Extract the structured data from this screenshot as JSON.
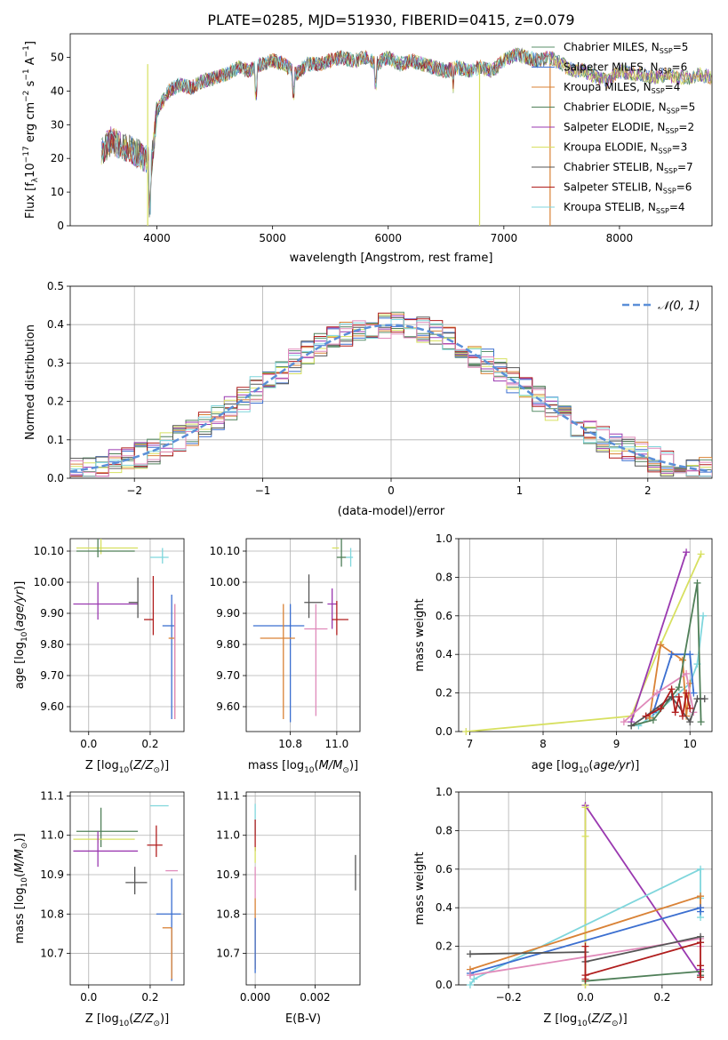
{
  "figure_title": "PLATE=0285, MJD=51930, FIBERID=0415, z=0.079",
  "colors": {
    "c_miles": "#5a8f6a",
    "s_miles": "#3b6fd0",
    "k_miles": "#d98236",
    "c_elodie": "#4f7f58",
    "s_elodie": "#9a39b0",
    "k_elodie": "#d7e060",
    "c_stelib": "#555555",
    "s_stelib": "#b01d1d",
    "k_stelib": "#7fd6dc",
    "pink": "#e08aba",
    "normal": "#5b8fd8"
  },
  "chart_data": [
    {
      "id": "spectrum",
      "type": "line",
      "xlabel": "wavelength [Angstrom, rest frame]",
      "ylabel": "Flux [f",
      "xlim": [
        3250,
        8800
      ],
      "ylim": [
        0,
        57
      ],
      "xticks": [
        4000,
        5000,
        6000,
        7000,
        8000
      ],
      "yticks": [
        0,
        10,
        20,
        30,
        40,
        50
      ],
      "legend_position": "top-right",
      "legend": [
        {
          "label": "Chabrier MILES, N",
          "n": "5",
          "color_key": "c_miles"
        },
        {
          "label": "Salpeter MILES, N",
          "n": "6",
          "color_key": "s_miles"
        },
        {
          "label": "Kroupa MILES, N",
          "n": "4",
          "color_key": "k_miles"
        },
        {
          "label": "Chabrier ELODIE, N",
          "n": "5",
          "color_key": "c_elodie"
        },
        {
          "label": "Salpeter ELODIE, N",
          "n": "2",
          "color_key": "s_elodie"
        },
        {
          "label": "Kroupa ELODIE, N",
          "n": "3",
          "color_key": "k_elodie"
        },
        {
          "label": "Chabrier STELIB, N",
          "n": "7",
          "color_key": "c_stelib"
        },
        {
          "label": "Salpeter STELIB, N",
          "n": "6",
          "color_key": "s_stelib"
        },
        {
          "label": "Kroupa STELIB, N",
          "n": "4",
          "color_key": "k_stelib"
        }
      ],
      "envelope": {
        "x": [
          3520,
          3600,
          3700,
          3800,
          3900,
          3950,
          4000,
          4100,
          4200,
          4300,
          4400,
          4500,
          4600,
          4700,
          4800,
          4900,
          5000,
          5100,
          5200,
          5300,
          5400,
          5500,
          5600,
          5700,
          5800,
          5900,
          6000,
          6100,
          6200,
          6300,
          6400,
          6500,
          6600,
          6700,
          6800,
          6900,
          7000,
          7100,
          7200,
          7300,
          7400,
          7500,
          7600,
          7700,
          7800,
          7900,
          8000,
          8100,
          8200,
          8300,
          8400,
          8500,
          8600,
          8700,
          8800
        ],
        "y": [
          22,
          25,
          24,
          22,
          20,
          18,
          34,
          40,
          42,
          41,
          43,
          44,
          45,
          47,
          46,
          48,
          49,
          48,
          45,
          48,
          48,
          49,
          50,
          49,
          50,
          48,
          50,
          48,
          49,
          48,
          47,
          46,
          47,
          46,
          47,
          46,
          49,
          51,
          50,
          49,
          50,
          48,
          46,
          46,
          44,
          43,
          46,
          45,
          45,
          44,
          45,
          44,
          44,
          45,
          44
        ]
      },
      "spike_lines": [
        {
          "x": 3920,
          "color_key": "k_elodie"
        },
        {
          "x": 6790,
          "color_key": "k_elodie"
        },
        {
          "x": 7400,
          "color_key": "k_miles"
        }
      ]
    },
    {
      "id": "residuals",
      "type": "histogram",
      "xlabel": "(data-model)/error",
      "ylabel": "Normed distribution",
      "xlim": [
        -2.5,
        2.5
      ],
      "ylim": [
        0,
        0.5
      ],
      "xticks": [
        -2,
        -1,
        0,
        1,
        2
      ],
      "yticks": [
        0.0,
        0.1,
        0.2,
        0.3,
        0.4,
        0.5
      ],
      "legend_position": "top-right",
      "legend_label": "𝒩(0, 1)"
    },
    {
      "id": "age_vs_z",
      "type": "errorbar",
      "xlabel": "Z [log",
      "ylabel": "age  [log",
      "xlim": [
        -0.06,
        0.31
      ],
      "ylim": [
        9.52,
        10.14
      ],
      "xticks": [
        0.0,
        0.2
      ],
      "yticks": [
        9.6,
        9.7,
        9.8,
        9.9,
        10.0,
        10.1
      ],
      "points": [
        {
          "x": 0.04,
          "y": 10.11,
          "xe": [
            0.08,
            0.12
          ],
          "ye": [
            0.02,
            0.03
          ],
          "color_key": "k_elodie"
        },
        {
          "x": 0.03,
          "y": 10.1,
          "xe": [
            0.07,
            0.12
          ],
          "ye": [
            0.02,
            0.04
          ],
          "color_key": "c_elodie"
        },
        {
          "x": 0.24,
          "y": 10.08,
          "xe": [
            0.04,
            0.02
          ],
          "ye": [
            0.02,
            0.03
          ],
          "color_key": "k_stelib"
        },
        {
          "x": 0.03,
          "y": 9.93,
          "xe": [
            0.08,
            0.13
          ],
          "ye": [
            0.05,
            0.07
          ],
          "color_key": "s_elodie"
        },
        {
          "x": 0.16,
          "y": 9.935,
          "xe": [
            0.03,
            0.0
          ],
          "ye": [
            0.05,
            0.08
          ],
          "color_key": "c_stelib"
        },
        {
          "x": 0.21,
          "y": 9.88,
          "xe": [
            0.03,
            0.0
          ],
          "ye": [
            0.05,
            0.14
          ],
          "color_key": "s_stelib"
        },
        {
          "x": 0.27,
          "y": 9.86,
          "xe": [
            0.03,
            0.01
          ],
          "ye": [
            0.3,
            0.1
          ],
          "color_key": "s_miles"
        },
        {
          "x": 0.28,
          "y": 9.82,
          "xe": [
            0.02,
            0.0
          ],
          "ye": [
            0.26,
            0.11
          ],
          "color_key": "k_miles"
        },
        {
          "x": 0.28,
          "y": 9.85,
          "xe": [
            0.0,
            0.0
          ],
          "ye": [
            0.29,
            0.08
          ],
          "color_key": "pink"
        }
      ]
    },
    {
      "id": "age_vs_mass",
      "type": "errorbar",
      "xlabel": "mass [log",
      "ylabel": "",
      "xlim": [
        10.61,
        11.1
      ],
      "ylim": [
        9.52,
        10.14
      ],
      "xticks": [
        10.8,
        11.0
      ],
      "yticks": [
        9.6,
        9.7,
        9.8,
        9.9,
        10.0,
        10.1
      ],
      "points": [
        {
          "x": 11.0,
          "y": 10.11,
          "xe": [
            0.02,
            0.01
          ],
          "ye": [
            0.0,
            0.0
          ],
          "color_key": "k_elodie"
        },
        {
          "x": 11.02,
          "y": 10.08,
          "xe": [
            0.02,
            0.02
          ],
          "ye": [
            0.03,
            0.06
          ],
          "color_key": "c_elodie"
        },
        {
          "x": 11.06,
          "y": 10.08,
          "xe": [
            0.02,
            0.01
          ],
          "ye": [
            0.03,
            0.03
          ],
          "color_key": "k_stelib"
        },
        {
          "x": 10.88,
          "y": 9.935,
          "xe": [
            0.02,
            0.06
          ],
          "ye": [
            0.05,
            0.09
          ],
          "color_key": "c_stelib"
        },
        {
          "x": 10.98,
          "y": 9.93,
          "xe": [
            0.02,
            0.02
          ],
          "ye": [
            0.08,
            0.05
          ],
          "color_key": "s_elodie"
        },
        {
          "x": 11.0,
          "y": 9.88,
          "xe": [
            0.02,
            0.05
          ],
          "ye": [
            0.05,
            0.06
          ],
          "color_key": "s_stelib"
        },
        {
          "x": 10.8,
          "y": 9.86,
          "xe": [
            0.16,
            0.06
          ],
          "ye": [
            0.31,
            0.07
          ],
          "color_key": "s_miles"
        },
        {
          "x": 10.77,
          "y": 9.82,
          "xe": [
            0.1,
            0.05
          ],
          "ye": [
            0.26,
            0.11
          ],
          "color_key": "k_miles"
        },
        {
          "x": 10.91,
          "y": 9.85,
          "xe": [
            0.05,
            0.05
          ],
          "ye": [
            0.28,
            0.08
          ],
          "color_key": "pink"
        }
      ]
    },
    {
      "id": "weight_vs_age",
      "type": "line",
      "xlabel": "age  [log",
      "ylabel": "mass weight",
      "xlim": [
        6.85,
        10.3
      ],
      "ylim": [
        0,
        1
      ],
      "xticks": [
        7,
        8,
        9,
        10
      ],
      "yticks": [
        0.0,
        0.2,
        0.4,
        0.6,
        0.8,
        1.0
      ],
      "series": [
        {
          "color_key": "k_elodie",
          "x": [
            6.95,
            9.2,
            9.6,
            10.15
          ],
          "y": [
            0.0,
            0.08,
            0.45,
            0.92
          ]
        },
        {
          "color_key": "s_elodie",
          "x": [
            9.2,
            9.95
          ],
          "y": [
            0.05,
            0.93
          ]
        },
        {
          "color_key": "k_stelib",
          "x": [
            9.3,
            9.55,
            10.0,
            10.1,
            10.18
          ],
          "y": [
            0.03,
            0.1,
            0.25,
            0.35,
            0.6
          ]
        },
        {
          "color_key": "k_miles",
          "x": [
            9.45,
            9.6,
            9.9,
            9.95,
            10.0
          ],
          "y": [
            0.07,
            0.45,
            0.37,
            0.08,
            0.25
          ]
        },
        {
          "color_key": "s_miles",
          "x": [
            9.5,
            9.75,
            10.0,
            10.05
          ],
          "y": [
            0.1,
            0.4,
            0.4,
            0.2
          ]
        },
        {
          "color_key": "pink",
          "x": [
            9.1,
            9.55,
            9.95,
            10.05
          ],
          "y": [
            0.05,
            0.2,
            0.3,
            0.1
          ]
        },
        {
          "color_key": "c_elodie",
          "x": [
            9.2,
            9.5,
            9.85,
            10.1,
            10.15
          ],
          "y": [
            0.03,
            0.06,
            0.23,
            0.77,
            0.05
          ]
        },
        {
          "color_key": "c_stelib",
          "x": [
            9.2,
            9.4,
            9.75,
            10.0,
            10.1,
            10.2
          ],
          "y": [
            0.03,
            0.08,
            0.18,
            0.05,
            0.17,
            0.17
          ]
        },
        {
          "color_key": "s_stelib",
          "x": [
            9.4,
            9.6,
            9.75,
            9.8,
            9.85,
            9.9,
            9.95,
            10.0
          ],
          "y": [
            0.08,
            0.12,
            0.22,
            0.1,
            0.18,
            0.08,
            0.2,
            0.12
          ]
        }
      ]
    },
    {
      "id": "mass_vs_z",
      "type": "errorbar",
      "xlabel": "Z [log",
      "ylabel": "mass [log",
      "xlim": [
        -0.06,
        0.31
      ],
      "ylim": [
        10.62,
        11.11
      ],
      "xticks": [
        0.0,
        0.2
      ],
      "yticks": [
        10.7,
        10.8,
        10.9,
        11.0,
        11.1
      ],
      "points": [
        {
          "x": 0.24,
          "y": 11.075,
          "xe": [
            0.04,
            0.02
          ],
          "ye": [
            0.0,
            0.0
          ],
          "color_key": "k_stelib"
        },
        {
          "x": 0.04,
          "y": 11.01,
          "xe": [
            0.08,
            0.12
          ],
          "ye": [
            0.04,
            0.06
          ],
          "color_key": "c_elodie"
        },
        {
          "x": 0.03,
          "y": 10.99,
          "xe": [
            0.08,
            0.12
          ],
          "ye": [
            0.01,
            0.01
          ],
          "color_key": "k_elodie"
        },
        {
          "x": 0.22,
          "y": 10.975,
          "xe": [
            0.03,
            0.02
          ],
          "ye": [
            0.03,
            0.05
          ],
          "color_key": "s_stelib"
        },
        {
          "x": 0.03,
          "y": 10.96,
          "xe": [
            0.08,
            0.13
          ],
          "ye": [
            0.04,
            0.05
          ],
          "color_key": "s_elodie"
        },
        {
          "x": 0.27,
          "y": 10.91,
          "xe": [
            0.02,
            0.02
          ],
          "ye": [
            0.0,
            0.0
          ],
          "color_key": "pink"
        },
        {
          "x": 0.15,
          "y": 10.88,
          "xe": [
            0.03,
            0.04
          ],
          "ye": [
            0.03,
            0.04
          ],
          "color_key": "c_stelib"
        },
        {
          "x": 0.27,
          "y": 10.8,
          "xe": [
            0.05,
            0.03
          ],
          "ye": [
            0.17,
            0.09
          ],
          "color_key": "s_miles"
        },
        {
          "x": 0.27,
          "y": 10.765,
          "xe": [
            0.03,
            0.0
          ],
          "ye": [
            0.13,
            0.0
          ],
          "color_key": "k_miles"
        }
      ]
    },
    {
      "id": "mass_vs_ebv",
      "type": "errorbar",
      "xlabel": "E(B-V)",
      "ylabel": "",
      "xlim": [
        -0.0003,
        0.0035
      ],
      "ylim": [
        10.62,
        11.11
      ],
      "xticks": [
        0.0,
        0.002
      ],
      "yticks": [
        10.7,
        10.8,
        10.9,
        11.0,
        11.1
      ],
      "points": [
        {
          "x": 0.0,
          "y": 11.04,
          "xe": [
            0,
            0
          ],
          "ye": [
            0.04,
            0.04
          ],
          "color_key": "k_stelib"
        },
        {
          "x": 0.0,
          "y": 11.0,
          "xe": [
            0,
            0
          ],
          "ye": [
            0.04,
            0.04
          ],
          "color_key": "s_stelib"
        },
        {
          "x": 0.0,
          "y": 10.95,
          "xe": [
            0,
            0
          ],
          "ye": [
            0.02,
            0.02
          ],
          "color_key": "k_elodie"
        },
        {
          "x": 0.0,
          "y": 10.88,
          "xe": [
            0,
            0
          ],
          "ye": [
            0.04,
            0.04
          ],
          "color_key": "pink"
        },
        {
          "x": 0.0,
          "y": 10.75,
          "xe": [
            0,
            0
          ],
          "ye": [
            0.09,
            0.09
          ],
          "color_key": "k_miles"
        },
        {
          "x": 0.0,
          "y": 10.72,
          "xe": [
            0,
            0
          ],
          "ye": [
            0.07,
            0.07
          ],
          "color_key": "s_miles"
        },
        {
          "x": 0.00335,
          "y": 10.905,
          "xe": [
            0,
            0
          ],
          "ye": [
            0.045,
            0.045
          ],
          "color_key": "c_stelib"
        }
      ]
    },
    {
      "id": "weight_vs_z",
      "type": "line",
      "xlabel": "Z [log",
      "ylabel": "mass weight",
      "xlim": [
        -0.33,
        0.33
      ],
      "ylim": [
        0,
        1
      ],
      "xticks": [
        -0.2,
        0.0,
        0.2
      ],
      "yticks": [
        0.0,
        0.2,
        0.4,
        0.6,
        0.8,
        1.0
      ],
      "series": [
        {
          "color_key": "s_elodie",
          "x": [
            0.0,
            0.0,
            0.3,
            0.3
          ],
          "y": [
            0.0,
            0.93,
            0.05,
            0.08
          ]
        },
        {
          "color_key": "k_elodie",
          "x": [
            0.0,
            0.0,
            0.0
          ],
          "y": [
            0.0,
            0.92,
            0.77
          ]
        },
        {
          "color_key": "k_stelib",
          "x": [
            -0.3,
            -0.29,
            0.3,
            0.3,
            0.3
          ],
          "y": [
            0.0,
            0.03,
            0.6,
            0.45,
            0.35
          ]
        },
        {
          "color_key": "k_miles",
          "x": [
            -0.3,
            0.3,
            0.3
          ],
          "y": [
            0.08,
            0.46,
            0.4
          ]
        },
        {
          "color_key": "s_miles",
          "x": [
            -0.3,
            0.3,
            0.3
          ],
          "y": [
            0.06,
            0.4,
            0.38
          ]
        },
        {
          "color_key": "pink",
          "x": [
            -0.3,
            0.3,
            0.3
          ],
          "y": [
            0.05,
            0.24,
            0.2
          ]
        },
        {
          "color_key": "c_stelib",
          "x": [
            -0.3,
            0.0,
            0.0,
            0.3,
            0.3
          ],
          "y": [
            0.16,
            0.17,
            0.12,
            0.25,
            0.22
          ]
        },
        {
          "color_key": "c_elodie",
          "x": [
            0.0,
            0.3,
            0.3
          ],
          "y": [
            0.02,
            0.07,
            0.05
          ]
        },
        {
          "color_key": "s_stelib",
          "x": [
            0.0,
            0.0,
            0.0,
            0.3,
            0.3,
            0.3
          ],
          "y": [
            0.03,
            0.2,
            0.05,
            0.22,
            0.1,
            0.04
          ]
        }
      ]
    }
  ]
}
